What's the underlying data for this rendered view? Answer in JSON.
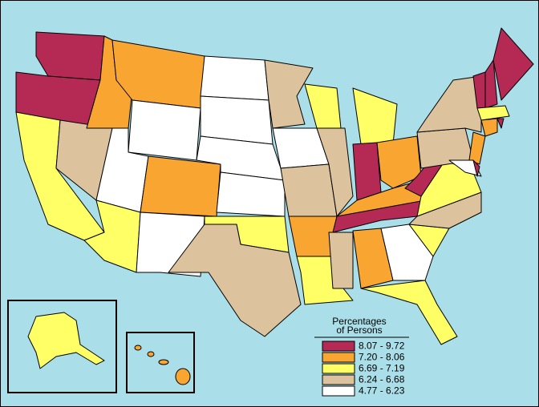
{
  "legend": {
    "title": [
      "Percentages",
      "of Persons"
    ],
    "entries": [
      {
        "label": "8.07 - 9.72",
        "color": "#b52a55"
      },
      {
        "label": "7.20 - 8.06",
        "color": "#f8a531"
      },
      {
        "label": "6.69 - 7.19",
        "color": "#ffff66"
      },
      {
        "label": "6.24 - 6.68",
        "color": "#dcc39d"
      },
      {
        "label": "4.77 - 6.23",
        "color": "#ffffff"
      }
    ]
  }
}
